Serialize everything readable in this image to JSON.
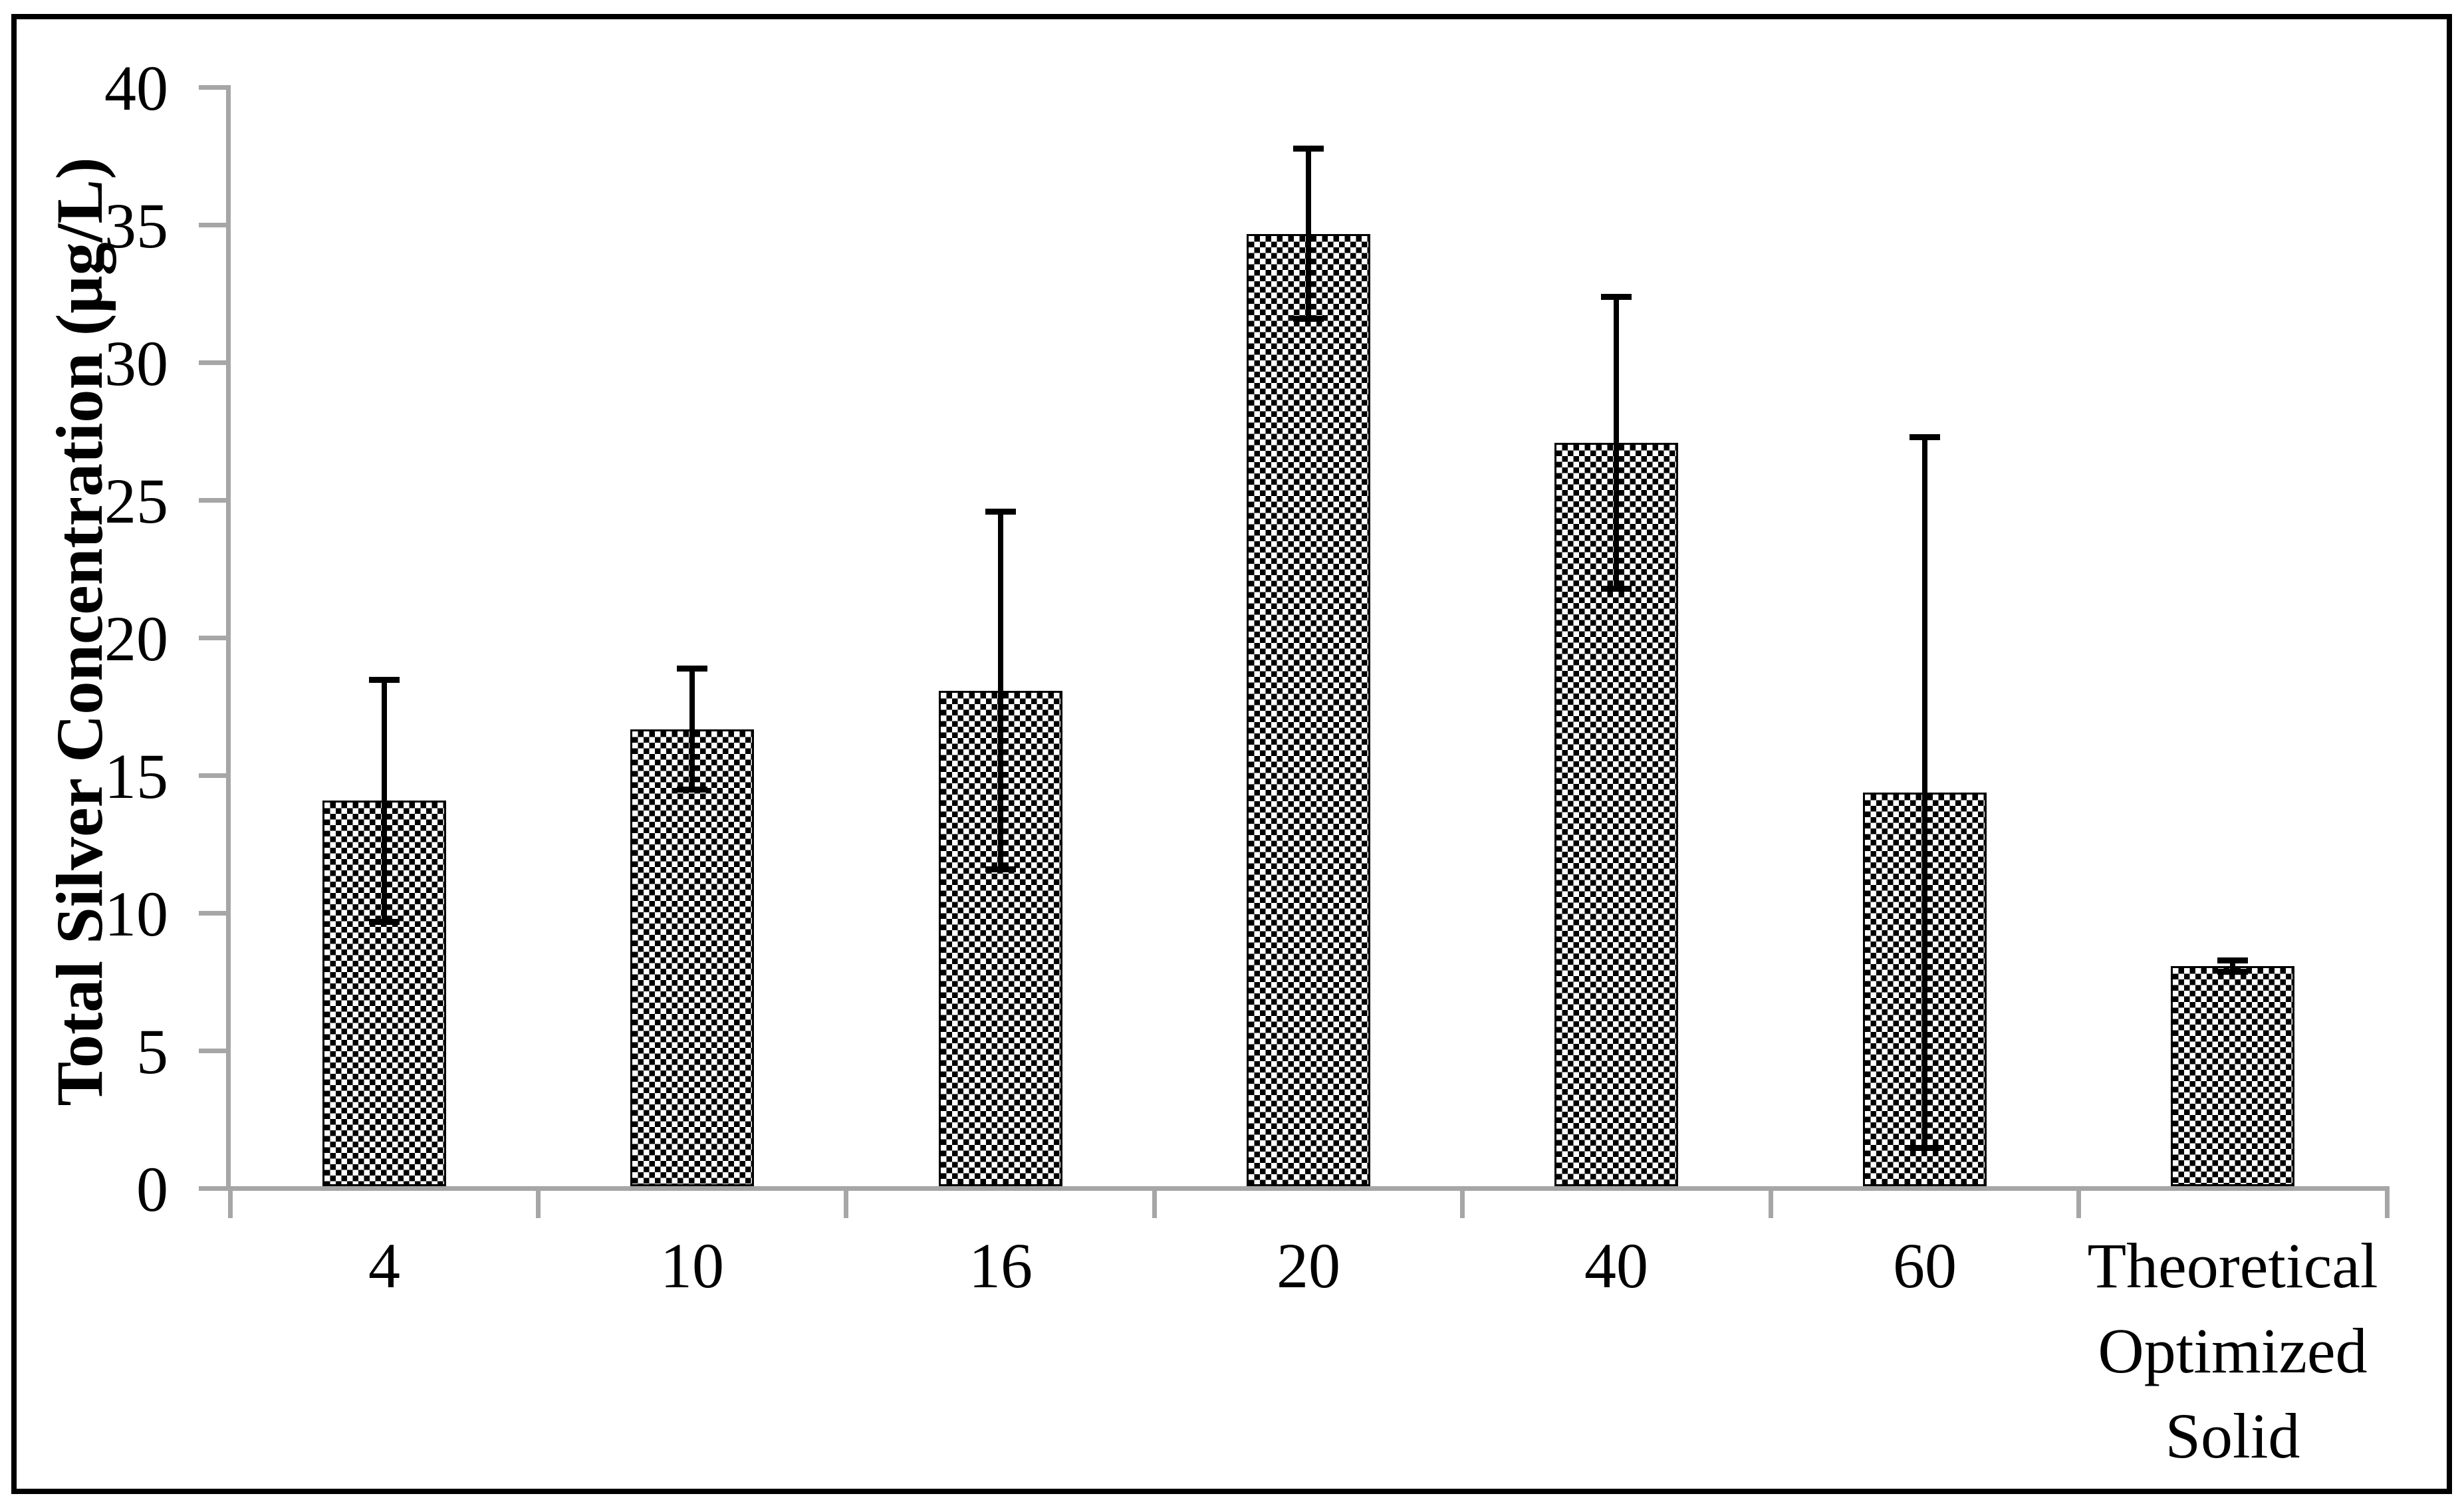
{
  "chart_data": {
    "type": "bar",
    "title": "",
    "xlabel": "",
    "ylabel": "Total Silver Concentration (µg/L)",
    "categories": [
      "4",
      "10",
      "16",
      "20",
      "40",
      "60",
      "Theoretical Optimized Solid"
    ],
    "values": [
      14.0,
      16.6,
      18.0,
      34.6,
      27.0,
      14.3,
      8.0
    ],
    "error_plus": [
      4.4,
      2.2,
      6.5,
      3.1,
      5.3,
      12.9,
      0.2
    ],
    "error_minus": [
      4.4,
      2.2,
      6.5,
      3.1,
      5.3,
      12.9,
      0.2
    ],
    "ylim": [
      0,
      40
    ],
    "yticks": [
      0,
      5,
      10,
      15,
      20,
      25,
      30,
      35,
      40
    ],
    "grid": false,
    "legend": false,
    "bar_fill": {
      "pattern": "small-checkerboard",
      "foreground": "#000000",
      "background": "#ffffff"
    },
    "colors": {
      "axis": "#a6a6a6",
      "text": "#000000",
      "error_bar": "#000000",
      "frame": "#000000",
      "page_bg": "#ffffff"
    }
  }
}
